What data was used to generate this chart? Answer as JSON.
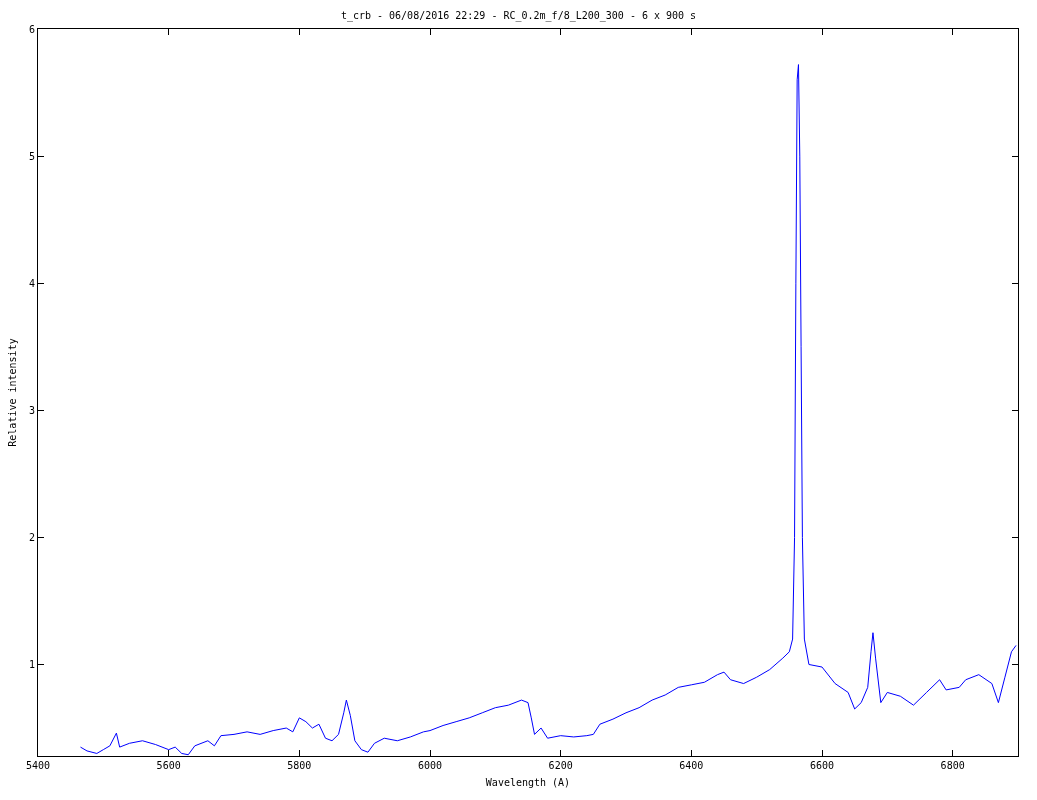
{
  "chart_data": {
    "type": "line",
    "title": "t_crb - 06/08/2016 22:29 - RC_0.2m_f/8_L200_300 - 6 x 900 s",
    "xlabel": "Wavelength (A)",
    "ylabel": "Relative intensity",
    "x": [
      5465,
      5475,
      5490,
      5500,
      5510,
      5520,
      5525,
      5540,
      5560,
      5580,
      5600,
      5610,
      5620,
      5630,
      5640,
      5660,
      5670,
      5680,
      5700,
      5720,
      5740,
      5760,
      5780,
      5790,
      5800,
      5810,
      5820,
      5830,
      5840,
      5850,
      5860,
      5868,
      5872,
      5878,
      5885,
      5895,
      5905,
      5915,
      5930,
      5950,
      5970,
      5990,
      6000,
      6020,
      6040,
      6060,
      6080,
      6100,
      6120,
      6140,
      6150,
      6155,
      6160,
      6170,
      6180,
      6200,
      6220,
      6240,
      6250,
      6260,
      6280,
      6300,
      6320,
      6340,
      6360,
      6380,
      6400,
      6420,
      6440,
      6450,
      6460,
      6480,
      6500,
      6520,
      6540,
      6550,
      6555,
      6558,
      6560,
      6562,
      6564,
      6566,
      6568,
      6570,
      6573,
      6580,
      6600,
      6620,
      6640,
      6650,
      6660,
      6670,
      6675,
      6678,
      6682,
      6690,
      6700,
      6720,
      6740,
      6760,
      6780,
      6790,
      6810,
      6820,
      6840,
      6860,
      6870,
      6880,
      6890,
      6897
    ],
    "series": [
      {
        "color": "#0000ff",
        "values": [
          0.35,
          0.32,
          0.3,
          0.33,
          0.36,
          0.46,
          0.35,
          0.38,
          0.4,
          0.37,
          0.33,
          0.35,
          0.3,
          0.29,
          0.36,
          0.4,
          0.36,
          0.44,
          0.45,
          0.47,
          0.45,
          0.48,
          0.5,
          0.47,
          0.58,
          0.55,
          0.5,
          0.53,
          0.42,
          0.4,
          0.45,
          0.62,
          0.72,
          0.6,
          0.4,
          0.33,
          0.31,
          0.38,
          0.42,
          0.4,
          0.43,
          0.47,
          0.48,
          0.52,
          0.55,
          0.58,
          0.62,
          0.66,
          0.68,
          0.72,
          0.7,
          0.58,
          0.45,
          0.5,
          0.42,
          0.44,
          0.43,
          0.44,
          0.45,
          0.53,
          0.57,
          0.62,
          0.66,
          0.72,
          0.76,
          0.82,
          0.84,
          0.86,
          0.92,
          0.94,
          0.88,
          0.85,
          0.9,
          0.96,
          1.05,
          1.1,
          1.2,
          2.0,
          4.0,
          5.6,
          5.72,
          5.0,
          3.5,
          2.0,
          1.2,
          1.0,
          0.98,
          0.85,
          0.78,
          0.65,
          0.7,
          0.82,
          1.1,
          1.25,
          1.05,
          0.7,
          0.78,
          0.75,
          0.68,
          0.78,
          0.88,
          0.8,
          0.82,
          0.88,
          0.92,
          0.85,
          0.7,
          0.9,
          1.1,
          1.15
        ]
      }
    ],
    "xlim": [
      5400,
      6900
    ],
    "xticks": [
      5400,
      5600,
      5800,
      6000,
      6200,
      6400,
      6600,
      6800
    ],
    "ylim": [
      0.28,
      6
    ],
    "yticks": [
      1,
      2,
      3,
      4,
      5,
      6
    ],
    "grid": false,
    "marker": "none",
    "line_style": "solid"
  }
}
